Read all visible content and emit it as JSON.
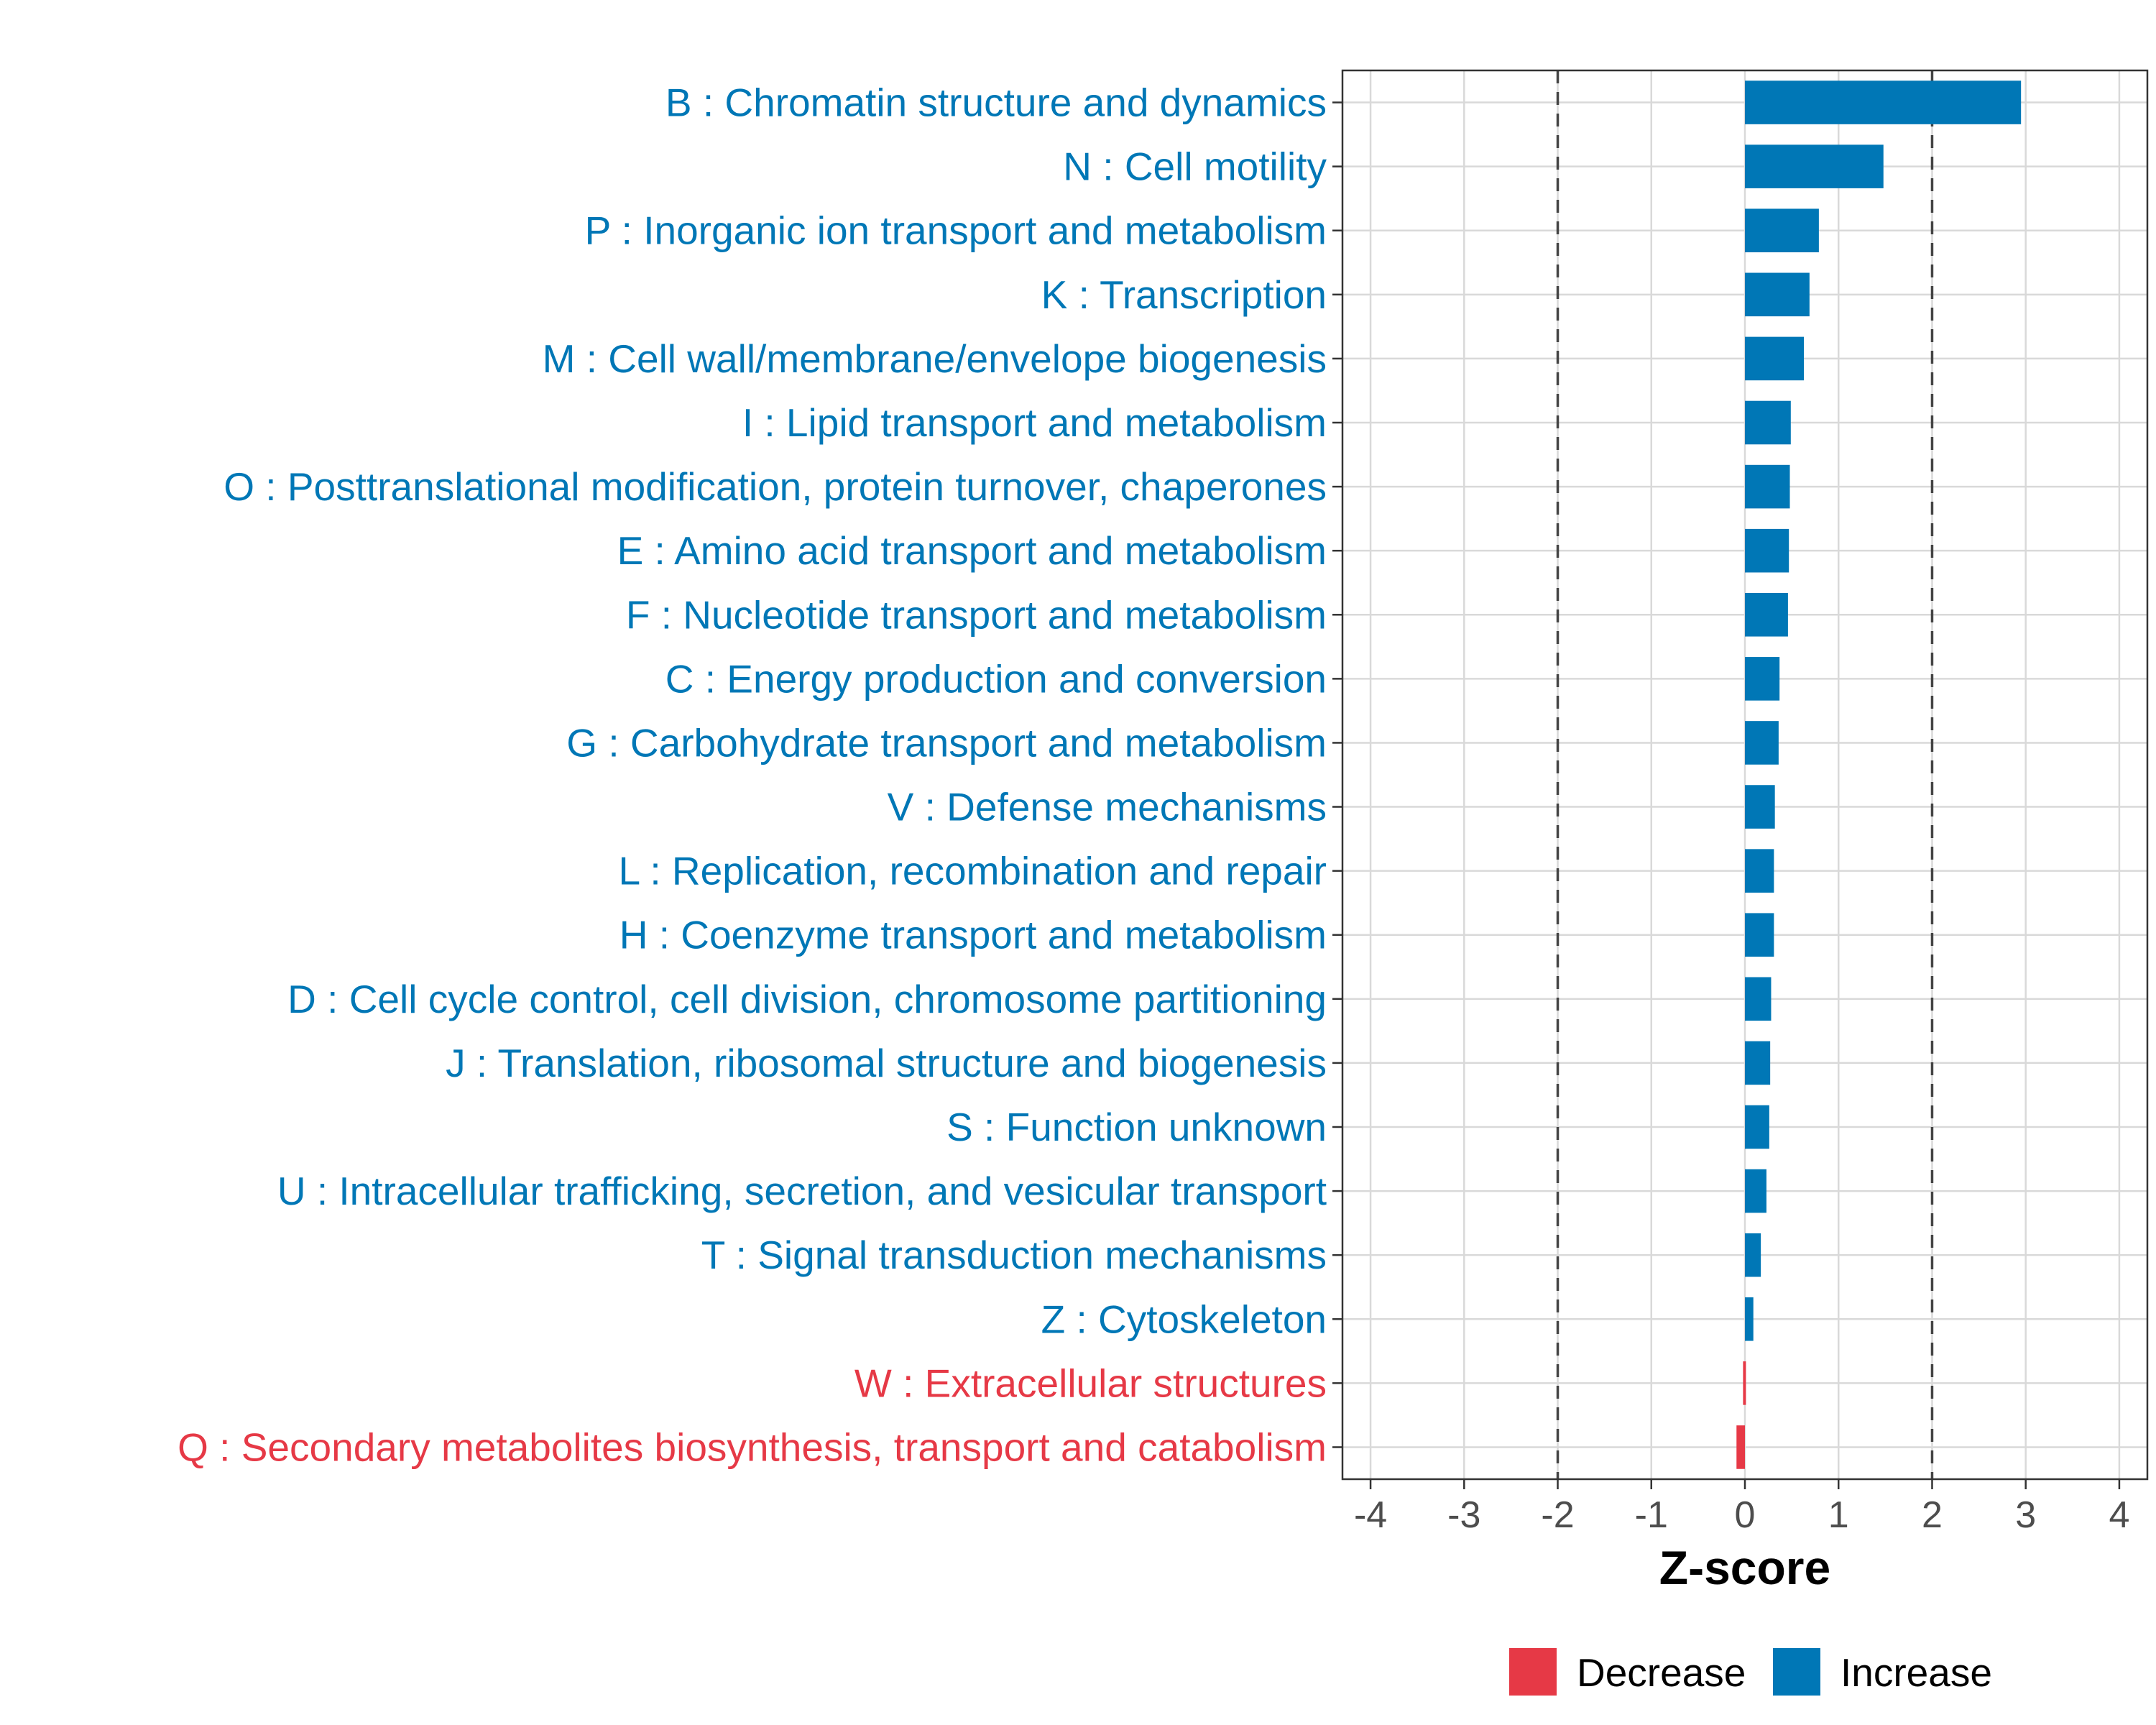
{
  "chart_data": {
    "type": "bar",
    "orientation": "horizontal",
    "title": "",
    "xlabel": "Z-score",
    "ylabel": "",
    "xlim": [
      -4.3,
      4.3
    ],
    "x_ticks": [
      -4,
      -3,
      -2,
      -1,
      0,
      1,
      2,
      3,
      4
    ],
    "x_tick_labels": [
      "-4",
      "-3",
      "-2",
      "-1",
      "0",
      "1",
      "2",
      "3",
      "4"
    ],
    "reference_lines": [
      -2,
      2
    ],
    "grid": true,
    "legend_position": "bottom",
    "colors": {
      "Decrease": "#e63946",
      "Increase": "#0077b6"
    },
    "legend": [
      {
        "name": "Decrease",
        "color": "#e63946"
      },
      {
        "name": "Increase",
        "color": "#0077b6"
      }
    ],
    "categories": [
      "B : Chromatin structure and dynamics",
      "N : Cell motility",
      "P : Inorganic ion transport and metabolism",
      "K : Transcription",
      "M : Cell wall/membrane/envelope biogenesis",
      "I : Lipid transport and metabolism",
      "O : Posttranslational modification, protein turnover, chaperones",
      "E : Amino acid transport and metabolism",
      "F : Nucleotide transport and metabolism",
      "C : Energy production and conversion",
      "G : Carbohydrate transport and metabolism",
      "V : Defense mechanisms",
      "L : Replication, recombination and repair",
      "H : Coenzyme transport and metabolism",
      "D : Cell cycle control, cell division, chromosome partitioning",
      "J : Translation, ribosomal structure and biogenesis",
      "S : Function unknown",
      "U : Intracellular trafficking, secretion, and vesicular transport",
      "T : Signal transduction mechanisms",
      "Z : Cytoskeleton",
      "W : Extracellular structures",
      "Q : Secondary metabolites biosynthesis, transport and catabolism"
    ],
    "values": [
      2.95,
      1.48,
      0.79,
      0.69,
      0.63,
      0.49,
      0.48,
      0.47,
      0.46,
      0.37,
      0.36,
      0.32,
      0.31,
      0.31,
      0.28,
      0.27,
      0.26,
      0.23,
      0.17,
      0.09,
      -0.02,
      -0.09
    ],
    "groups": [
      "Increase",
      "Increase",
      "Increase",
      "Increase",
      "Increase",
      "Increase",
      "Increase",
      "Increase",
      "Increase",
      "Increase",
      "Increase",
      "Increase",
      "Increase",
      "Increase",
      "Increase",
      "Increase",
      "Increase",
      "Increase",
      "Increase",
      "Increase",
      "Decrease",
      "Decrease"
    ]
  }
}
